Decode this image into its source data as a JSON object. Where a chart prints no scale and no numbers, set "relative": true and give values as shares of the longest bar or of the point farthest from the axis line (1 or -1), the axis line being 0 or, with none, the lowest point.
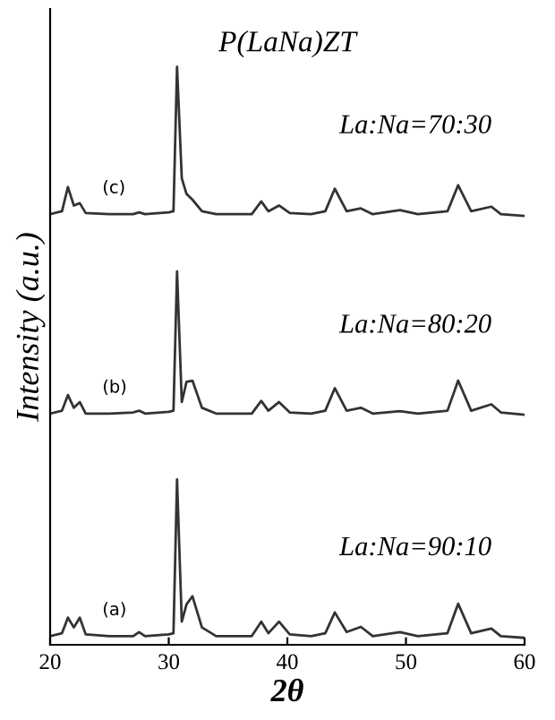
{
  "chart_data": {
    "type": "line",
    "title": "P(LaNa)ZT",
    "xlabel": "2θ",
    "ylabel": "Intensity (a.u.)",
    "relative": true,
    "xlim": [
      20,
      60
    ],
    "xticks": [
      20,
      30,
      40,
      50,
      60
    ],
    "grid": false,
    "legend": false,
    "marker": "none",
    "line_style": "solid",
    "x": [
      20,
      21,
      21.5,
      22,
      22.5,
      23,
      25,
      27,
      27.5,
      28,
      30,
      30.4,
      30.7,
      31.1,
      31.5,
      32,
      32.8,
      34,
      37,
      37.8,
      38.4,
      39.3,
      40.2,
      42,
      43.2,
      44,
      45,
      46.2,
      47.2,
      49.5,
      51,
      53.5,
      54.4,
      55.5,
      57.2,
      58,
      60
    ],
    "series": [
      {
        "name": "(a)",
        "color": "#333333",
        "values": [
          0.015,
          0.02,
          0.047,
          0.03,
          0.047,
          0.018,
          0.015,
          0.015,
          0.022,
          0.015,
          0.018,
          0.02,
          0.286,
          0.04,
          0.07,
          0.084,
          0.03,
          0.015,
          0.015,
          0.04,
          0.02,
          0.04,
          0.018,
          0.015,
          0.02,
          0.056,
          0.022,
          0.031,
          0.015,
          0.022,
          0.015,
          0.02,
          0.071,
          0.02,
          0.028,
          0.015,
          0.012
        ]
      },
      {
        "name": "(b)",
        "color": "#333333",
        "values": [
          0.4,
          0.405,
          0.432,
          0.41,
          0.42,
          0.4,
          0.4,
          0.402,
          0.405,
          0.4,
          0.403,
          0.405,
          0.646,
          0.42,
          0.455,
          0.457,
          0.41,
          0.4,
          0.4,
          0.422,
          0.405,
          0.42,
          0.402,
          0.4,
          0.405,
          0.444,
          0.405,
          0.41,
          0.4,
          0.404,
          0.4,
          0.405,
          0.457,
          0.405,
          0.416,
          0.402,
          0.398
        ]
      },
      {
        "name": "(c)",
        "color": "#333333",
        "values": [
          0.745,
          0.75,
          0.792,
          0.76,
          0.764,
          0.747,
          0.745,
          0.745,
          0.748,
          0.745,
          0.748,
          0.75,
          1.0,
          0.807,
          0.78,
          0.77,
          0.75,
          0.745,
          0.745,
          0.767,
          0.75,
          0.76,
          0.747,
          0.745,
          0.75,
          0.789,
          0.75,
          0.755,
          0.745,
          0.752,
          0.745,
          0.75,
          0.795,
          0.75,
          0.758,
          0.745,
          0.742
        ]
      }
    ],
    "annotations": [
      "La:Na=90:10",
      "La:Na=80:20",
      "La:Na=70:30"
    ]
  }
}
